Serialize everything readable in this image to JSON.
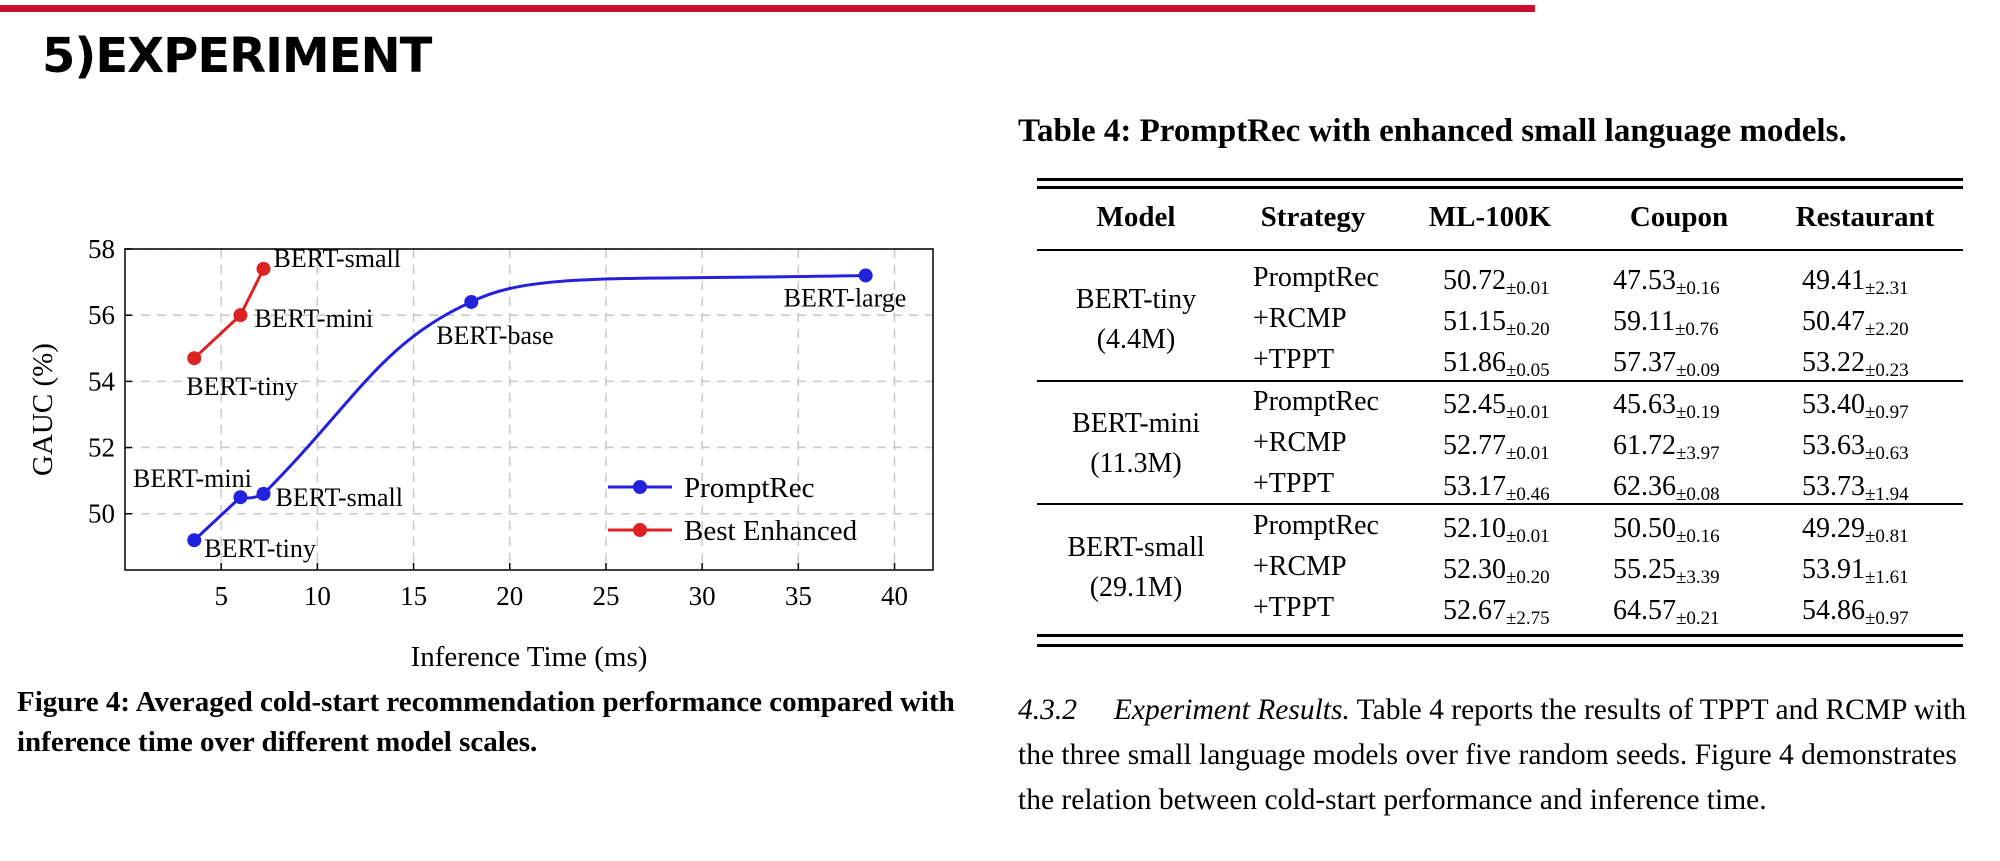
{
  "slide": {
    "title": "5)EXPERIMENT"
  },
  "figure": {
    "caption": "Figure 4: Averaged cold-start recommendation performance compared with inference time over different model scales."
  },
  "chart_data": {
    "type": "line",
    "xlabel": "Inference Time (ms)",
    "ylabel": "GAUC (%)",
    "xlim": [
      0,
      42
    ],
    "ylim": [
      48.3,
      58
    ],
    "xticks": [
      5,
      10,
      15,
      20,
      25,
      30,
      35,
      40
    ],
    "yticks": [
      50,
      52,
      54,
      56,
      58
    ],
    "grid": true,
    "legend": "bottom-right",
    "series": [
      {
        "name": "PromptRec",
        "color": "#2222dd",
        "x": [
          3.6,
          6.0,
          7.2,
          18.0,
          38.5
        ],
        "y": [
          49.2,
          50.5,
          50.6,
          56.4,
          57.2
        ],
        "point_labels": [
          "BERT-tiny",
          "BERT-mini",
          "BERT-small",
          "BERT-base",
          "BERT-large"
        ]
      },
      {
        "name": "Best Enhanced",
        "color": "#dd2222",
        "x": [
          3.6,
          6.0,
          7.2
        ],
        "y": [
          54.7,
          56.0,
          57.4
        ],
        "point_labels": [
          "BERT-tiny",
          "BERT-mini",
          "BERT-small"
        ]
      }
    ]
  },
  "table": {
    "caption": "Table 4: PromptRec with enhanced small language models.",
    "headers": [
      "Model",
      "Strategy",
      "ML-100K",
      "Coupon",
      "Restaurant"
    ],
    "groups": [
      {
        "model": "BERT-tiny",
        "params": "(4.4M)",
        "rows": [
          {
            "strategy": "PromptRec",
            "values": [
              [
                "50.72",
                "±0.01"
              ],
              [
                "47.53",
                "±0.16"
              ],
              [
                "49.41",
                "±2.31"
              ]
            ]
          },
          {
            "strategy": "+RCMP",
            "values": [
              [
                "51.15",
                "±0.20"
              ],
              [
                "59.11",
                "±0.76"
              ],
              [
                "50.47",
                "±2.20"
              ]
            ]
          },
          {
            "strategy": "+TPPT",
            "values": [
              [
                "51.86",
                "±0.05"
              ],
              [
                "57.37",
                "±0.09"
              ],
              [
                "53.22",
                "±0.23"
              ]
            ]
          }
        ]
      },
      {
        "model": "BERT-mini",
        "params": "(11.3M)",
        "rows": [
          {
            "strategy": "PromptRec",
            "values": [
              [
                "52.45",
                "±0.01"
              ],
              [
                "45.63",
                "±0.19"
              ],
              [
                "53.40",
                "±0.97"
              ]
            ]
          },
          {
            "strategy": "+RCMP",
            "values": [
              [
                "52.77",
                "±0.01"
              ],
              [
                "61.72",
                "±3.97"
              ],
              [
                "53.63",
                "±0.63"
              ]
            ]
          },
          {
            "strategy": "+TPPT",
            "values": [
              [
                "53.17",
                "±0.46"
              ],
              [
                "62.36",
                "±0.08"
              ],
              [
                "53.73",
                "±1.94"
              ]
            ]
          }
        ]
      },
      {
        "model": "BERT-small",
        "params": "(29.1M)",
        "rows": [
          {
            "strategy": "PromptRec",
            "values": [
              [
                "52.10",
                "±0.01"
              ],
              [
                "50.50",
                "±0.16"
              ],
              [
                "49.29",
                "±0.81"
              ]
            ]
          },
          {
            "strategy": "+RCMP",
            "values": [
              [
                "52.30",
                "±0.20"
              ],
              [
                "55.25",
                "±3.39"
              ],
              [
                "53.91",
                "±1.61"
              ]
            ]
          },
          {
            "strategy": "+TPPT",
            "values": [
              [
                "52.67",
                "±2.75"
              ],
              [
                "64.57",
                "±0.21"
              ],
              [
                "54.86",
                "±0.97"
              ]
            ]
          }
        ]
      }
    ]
  },
  "section": {
    "number": "4.3.2",
    "title": "Experiment Results.",
    "text": "Table 4 reports the results of TPPT and RCMP with the three small language models over five random seeds. Figure 4 demonstrates the relation between cold-start performance and inference time."
  }
}
